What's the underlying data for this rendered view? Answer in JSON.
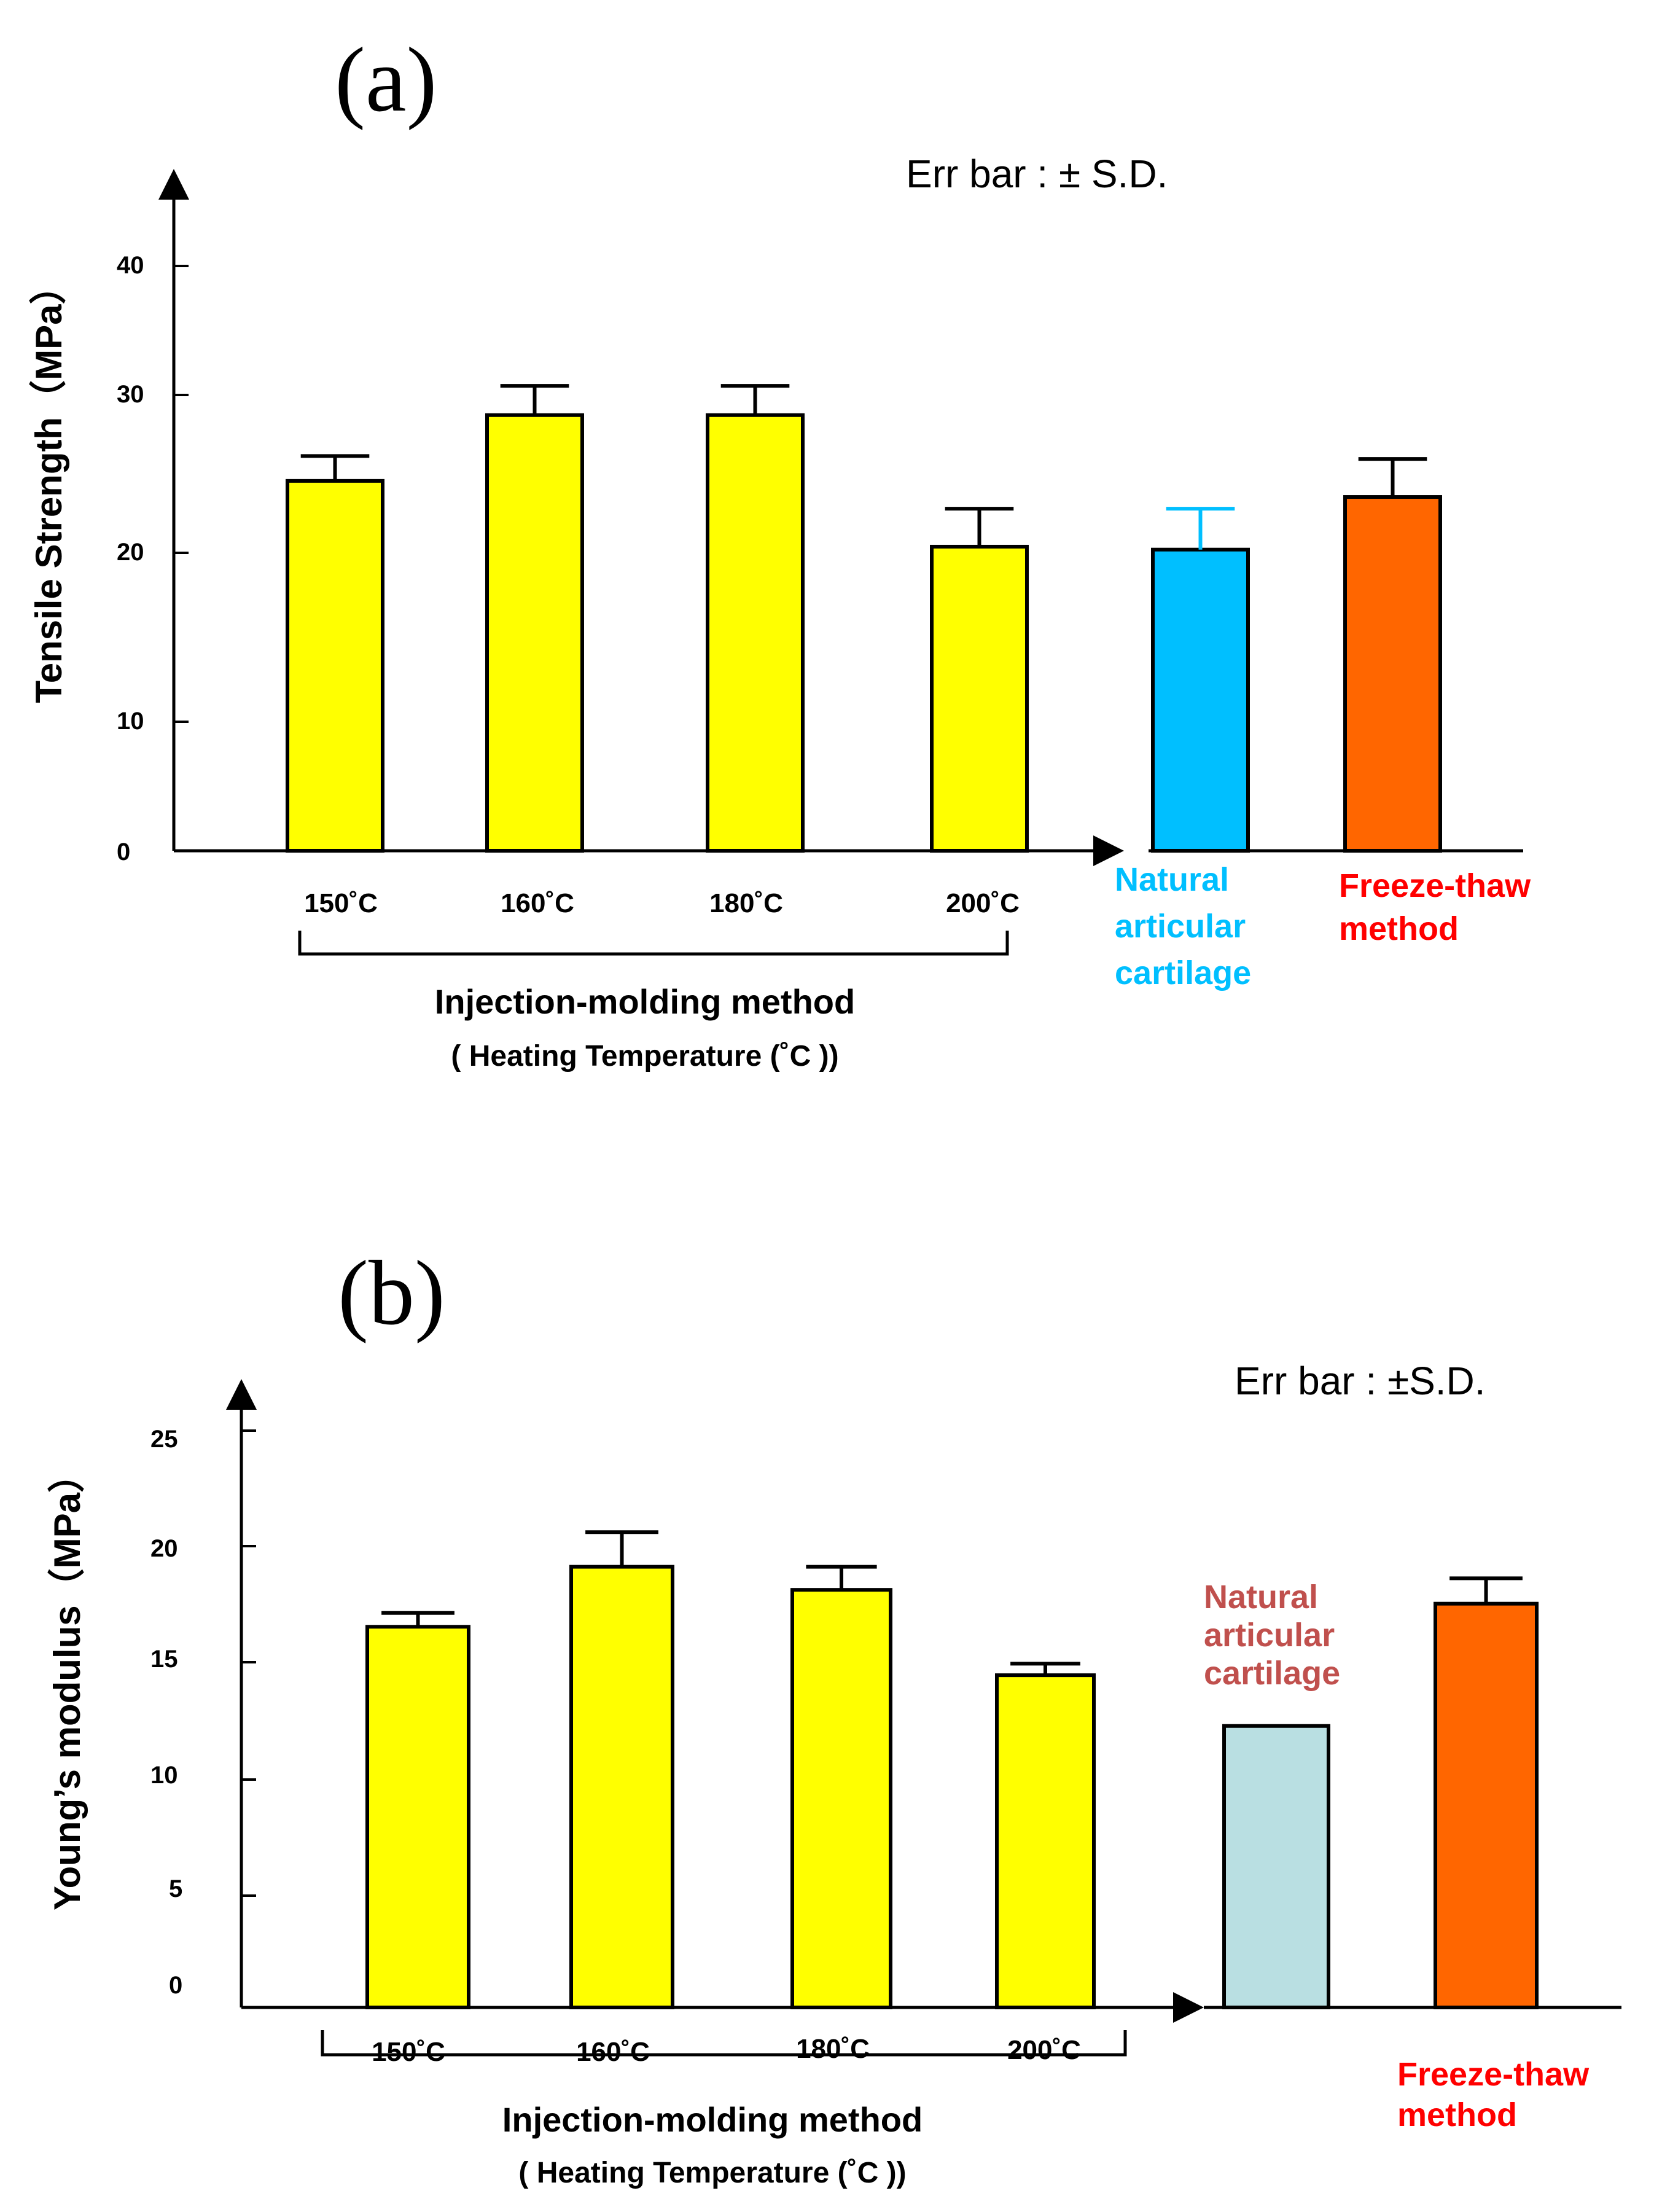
{
  "chart_data": [
    {
      "type": "bar",
      "panel": "(a)",
      "note": "Err bar : ± S.D.",
      "ylabel": "Tensile Strength（MPa）",
      "yticks": [
        "0",
        "10",
        "20",
        "30",
        "40"
      ],
      "categories": [
        "150˚C",
        "160˚C",
        "180˚C",
        "200˚C",
        "Natural articular cartilage",
        "Freeze-thaw method"
      ],
      "values": [
        25.3,
        29.8,
        29.8,
        20.8,
        20.6,
        24.2
      ],
      "errors": [
        1.7,
        2.0,
        2.0,
        2.6,
        2.8,
        2.6
      ],
      "colors": [
        "#ffff00",
        "#ffff00",
        "#ffff00",
        "#ffff00",
        "#00bfff",
        "#ff6600"
      ],
      "group_label": "Injection-molding method",
      "group_sublabel": "( Heating  Temperature (˚C ))",
      "side_labels": [
        {
          "lines": [
            "Natural",
            "articular",
            "cartilage"
          ],
          "color": "#00bfff"
        },
        {
          "lines": [
            "Freeze-thaw",
            "method"
          ],
          "color": "#ff0000"
        }
      ]
    },
    {
      "type": "bar",
      "panel": "(b)",
      "note": "Err bar : ±S.D.",
      "ylabel": "Young’s  modulus（MPa）",
      "yticks": [
        "0",
        "5",
        "10",
        "15",
        "20",
        "25"
      ],
      "categories": [
        "150˚C",
        "160˚C",
        "180˚C",
        "200˚C",
        "Natural articular cartilage",
        "Freeze-thaw method"
      ],
      "values": [
        16.5,
        19.1,
        18.1,
        14.4,
        12.2,
        17.5
      ],
      "errors": [
        0.6,
        1.5,
        1.0,
        0.5,
        0,
        1.1
      ],
      "colors": [
        "#ffff00",
        "#ffff00",
        "#ffff00",
        "#ffff00",
        "#b9dfe2",
        "#ff6600"
      ],
      "group_label": "Injection-molding method",
      "group_sublabel": "( Heating  Temperature (˚C ))",
      "side_labels": [
        {
          "lines": [
            "Natural",
            "articular",
            "cartilage"
          ],
          "color": "#c0504d"
        },
        {
          "lines": [
            "Freeze-thaw",
            "method"
          ],
          "color": "#ff0000"
        }
      ]
    }
  ]
}
